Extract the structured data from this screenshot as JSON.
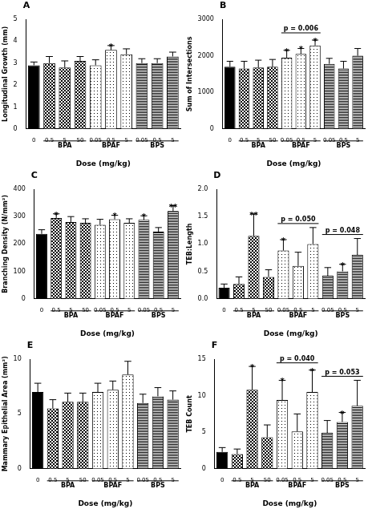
{
  "chart_data": [
    {
      "type": "bar",
      "title": "A",
      "x_label": "Dose (mg/kg)",
      "y_label": "Longitudinal Growth (mm)",
      "categories": [
        "0",
        "0.5",
        "5",
        "50",
        "0.05",
        "0.5",
        "5",
        "0.05",
        "0.5",
        "5"
      ],
      "group_of": [
        null,
        "BPA",
        "BPA",
        "BPA",
        "BPAF",
        "BPAF",
        "BPAF",
        "BPS",
        "BPS",
        "BPS"
      ],
      "values": [
        2.9,
        3.0,
        2.8,
        3.1,
        2.9,
        3.6,
        3.4,
        3.0,
        3.0,
        3.3
      ],
      "errors": [
        0.15,
        0.3,
        0.3,
        0.2,
        0.25,
        0.2,
        0.25,
        0.2,
        0.2,
        0.2
      ],
      "significance": [
        null,
        null,
        null,
        null,
        null,
        "*",
        null,
        null,
        null,
        null
      ],
      "brackets": [],
      "color": "#000000",
      "ylim": [
        0,
        5
      ],
      "yticks": [
        0,
        1,
        2,
        3,
        4,
        5
      ],
      "grid": false
    },
    {
      "type": "bar",
      "title": "B",
      "x_label": "Dose (mg/kg)",
      "y_label": "Sum of Intersections",
      "categories": [
        "0",
        "0.5",
        "5",
        "50",
        "0.05",
        "0.5",
        "5",
        "0.05",
        "0.5",
        "5"
      ],
      "group_of": [
        null,
        "BPA",
        "BPA",
        "BPA",
        "BPAF",
        "BPAF",
        "BPAF",
        "BPS",
        "BPS",
        "BPS"
      ],
      "values": [
        1700,
        1650,
        1680,
        1700,
        1950,
        2050,
        2280,
        1780,
        1650,
        2000
      ],
      "errors": [
        150,
        200,
        200,
        200,
        200,
        150,
        150,
        150,
        200,
        200
      ],
      "significance": [
        null,
        null,
        null,
        null,
        "*",
        "*",
        "*",
        null,
        null,
        null
      ],
      "brackets": [
        {
          "group": "BPAF",
          "label": "p = 0.006"
        }
      ],
      "color": "#000000",
      "ylim": [
        0,
        3000
      ],
      "yticks": [
        0,
        1000,
        2000,
        3000
      ],
      "grid": false
    },
    {
      "type": "bar",
      "title": "C",
      "x_label": "Dose (mg/kg)",
      "y_label": "Branching Density (N/mm²)",
      "categories": [
        "0",
        "0.5",
        "5",
        "50",
        "0.05",
        "0.5",
        "5",
        "0.05",
        "0.5",
        "5"
      ],
      "group_of": [
        null,
        "BPA",
        "BPA",
        "BPA",
        "BPAF",
        "BPAF",
        "BPAF",
        "BPS",
        "BPS",
        "BPS"
      ],
      "values": [
        237,
        295,
        280,
        277,
        270,
        290,
        277,
        288,
        245,
        320
      ],
      "errors": [
        15,
        15,
        20,
        15,
        20,
        15,
        15,
        15,
        15,
        20
      ],
      "significance": [
        null,
        "*",
        null,
        null,
        null,
        "*",
        null,
        "*",
        null,
        "**"
      ],
      "brackets": [],
      "color": "#000000",
      "ylim": [
        0,
        400
      ],
      "yticks": [
        0,
        100,
        200,
        300,
        400
      ],
      "grid": false
    },
    {
      "type": "bar",
      "title": "D",
      "x_label": "Dose (mg/kg)",
      "y_label": "TEB:Length",
      "categories": [
        "0",
        "0.5",
        "5",
        "50",
        "0.05",
        "0.5",
        "5",
        "0.05",
        "0.5",
        "5"
      ],
      "group_of": [
        null,
        "BPA",
        "BPA",
        "BPA",
        "BPAF",
        "BPAF",
        "BPAF",
        "BPS",
        "BPS",
        "BPS"
      ],
      "values": [
        0.2,
        0.27,
        1.15,
        0.4,
        0.88,
        0.6,
        1.0,
        0.42,
        0.5,
        0.8
      ],
      "errors": [
        0.07,
        0.13,
        0.4,
        0.13,
        0.2,
        0.25,
        0.3,
        0.15,
        0.13,
        0.3
      ],
      "significance": [
        null,
        null,
        "**",
        null,
        "*",
        null,
        null,
        null,
        "*",
        null
      ],
      "brackets": [
        {
          "group": "BPAF",
          "label": "p = 0.050"
        },
        {
          "group": "BPS",
          "label": "p = 0.048"
        }
      ],
      "color": "#000000",
      "ylim": [
        0,
        2
      ],
      "yticks": [
        {
          "value": 0,
          "label": "0.0"
        },
        0.5,
        {
          "value": 1,
          "label": "1.0"
        },
        1.5,
        {
          "value": 2,
          "label": "2.0"
        }
      ],
      "grid": false
    },
    {
      "type": "bar",
      "title": "E",
      "x_label": "Dose (mg/kg)",
      "y_label": "Mammary Epithelial Area (mm²)",
      "categories": [
        "0",
        "0.5",
        "5",
        "50",
        "0.05",
        "0.5",
        "5",
        "0.05",
        "0.5",
        "5"
      ],
      "group_of": [
        null,
        "BPA",
        "BPA",
        "BPA",
        "BPAF",
        "BPAF",
        "BPAF",
        "BPS",
        "BPS",
        "BPS"
      ],
      "values": [
        7.0,
        5.5,
        6.1,
        6.1,
        7.0,
        7.2,
        8.6,
        6.0,
        6.6,
        6.3
      ],
      "errors": [
        0.8,
        0.8,
        0.8,
        0.8,
        0.8,
        0.8,
        1.2,
        0.8,
        0.8,
        0.8
      ],
      "significance": [
        null,
        null,
        null,
        null,
        null,
        null,
        null,
        null,
        null,
        null
      ],
      "brackets": [],
      "color": "#000000",
      "ylim": [
        0,
        10
      ],
      "yticks": [
        0,
        5,
        10
      ],
      "grid": false
    },
    {
      "type": "bar",
      "title": "F",
      "x_label": "Dose (mg/kg)",
      "y_label": "TEB Count",
      "categories": [
        "0",
        "0.5",
        "5",
        "50",
        "0.05",
        "0.5",
        "5",
        "0.05",
        "0.5",
        "5"
      ],
      "group_of": [
        null,
        "BPA",
        "BPA",
        "BPA",
        "BPAF",
        "BPAF",
        "BPAF",
        "BPS",
        "BPS",
        "BPS"
      ],
      "values": [
        2.3,
        2.0,
        10.8,
        4.3,
        9.4,
        5.1,
        10.5,
        4.9,
        6.4,
        8.6
      ],
      "errors": [
        0.6,
        0.7,
        3.2,
        1.7,
        2.7,
        2.4,
        3.0,
        1.7,
        1.3,
        3.5
      ],
      "significance": [
        null,
        null,
        "*",
        null,
        "*",
        null,
        "*",
        null,
        "*",
        null
      ],
      "brackets": [
        {
          "group": "BPAF",
          "label": "p = 0.040"
        },
        {
          "group": "BPS",
          "label": "p = 0.053"
        }
      ],
      "color": "#000000",
      "ylim": [
        0,
        15
      ],
      "yticks": [
        0,
        5,
        10,
        15
      ],
      "grid": false
    }
  ]
}
